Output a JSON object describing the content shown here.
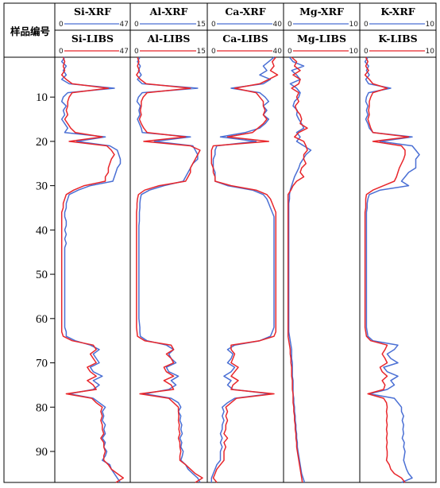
{
  "chart_data": {
    "type": "line",
    "orientation": "vertical-depth-log",
    "y_axis_title": "样品编号",
    "y_range": [
      1,
      97
    ],
    "y_ticks": [
      10,
      20,
      30,
      40,
      50,
      60,
      70,
      80,
      90
    ],
    "colors": {
      "xrf": "#4a6fd4",
      "libs": "#e8262b"
    },
    "depth": [
      1,
      2,
      3,
      4,
      5,
      6,
      7,
      8,
      9,
      10,
      11,
      12,
      13,
      14,
      15,
      16,
      17,
      18,
      19,
      20,
      21,
      22,
      23,
      24,
      25,
      26,
      27,
      28,
      29,
      30,
      31,
      32,
      33,
      34,
      35,
      36,
      37,
      38,
      39,
      40,
      41,
      42,
      43,
      44,
      45,
      46,
      47,
      48,
      49,
      50,
      51,
      52,
      53,
      54,
      55,
      56,
      57,
      58,
      59,
      60,
      61,
      62,
      63,
      64,
      65,
      66,
      67,
      68,
      69,
      70,
      71,
      72,
      73,
      74,
      75,
      76,
      77,
      78,
      79,
      80,
      81,
      82,
      83,
      84,
      85,
      86,
      87,
      88,
      89,
      90,
      91,
      92,
      93,
      94,
      95,
      96,
      97
    ],
    "tracks": [
      {
        "element": "Si",
        "xrf_label": "Si-XRF",
        "libs_label": "Si-LIBS",
        "range": [
          0,
          47
        ],
        "range_labels": [
          "0",
          "47"
        ],
        "xrf": [
          5,
          3,
          6,
          4,
          6,
          3,
          8,
          38,
          7,
          4,
          3,
          6,
          4,
          5,
          3,
          5,
          7,
          5,
          32,
          13,
          35,
          40,
          41,
          42,
          42,
          40,
          39,
          38,
          37,
          22,
          14,
          8,
          7,
          6,
          6,
          5,
          5,
          6,
          6,
          5,
          6,
          5,
          6,
          5,
          5,
          5,
          5,
          5,
          5,
          5,
          5,
          5,
          5,
          5,
          5,
          5,
          5,
          5,
          5,
          5,
          5,
          5,
          6,
          6,
          12,
          22,
          28,
          24,
          26,
          28,
          22,
          24,
          30,
          24,
          28,
          24,
          8,
          24,
          28,
          32,
          30,
          31,
          30,
          32,
          31,
          32,
          30,
          32,
          31,
          33,
          32,
          30,
          35,
          36,
          38,
          40,
          42
        ],
        "libs": [
          4,
          5,
          4,
          5,
          3,
          6,
          10,
          34,
          10,
          8,
          7,
          7,
          6,
          7,
          5,
          7,
          9,
          12,
          30,
          8,
          33,
          36,
          38,
          36,
          35,
          34,
          34,
          32,
          32,
          18,
          11,
          6,
          5,
          4,
          4,
          3,
          3,
          3,
          3,
          3,
          3,
          3,
          3,
          3,
          3,
          3,
          3,
          3,
          3,
          3,
          3,
          3,
          3,
          3,
          3,
          3,
          3,
          3,
          3,
          3,
          3,
          3,
          3,
          4,
          10,
          24,
          26,
          22,
          24,
          26,
          20,
          22,
          26,
          20,
          24,
          26,
          6,
          23,
          26,
          30,
          29,
          30,
          29,
          30,
          30,
          31,
          29,
          31,
          31,
          32,
          31,
          31,
          34,
          36,
          40,
          44,
          39
        ]
      },
      {
        "element": "Al",
        "xrf_label": "Al-XRF",
        "libs_label": "Al-LIBS",
        "range": [
          0,
          15
        ],
        "range_labels": [
          "0",
          "15"
        ],
        "xrf": [
          1.5,
          1.0,
          1.6,
          1.2,
          1.8,
          1.0,
          2.0,
          13.5,
          2.0,
          1.2,
          0.9,
          1.6,
          1.3,
          1.5,
          1.0,
          1.4,
          1.8,
          2.0,
          12.0,
          4.5,
          12.5,
          13.0,
          13.5,
          13.5,
          12.5,
          12.0,
          11.5,
          11.0,
          10.5,
          6.5,
          3.5,
          1.8,
          1.6,
          1.5,
          1.5,
          1.4,
          1.4,
          1.4,
          1.3,
          1.3,
          1.3,
          1.3,
          1.3,
          1.3,
          1.3,
          1.3,
          1.3,
          1.3,
          1.3,
          1.3,
          1.3,
          1.3,
          1.3,
          1.3,
          1.3,
          1.3,
          1.3,
          1.3,
          1.3,
          1.3,
          1.4,
          1.5,
          1.5,
          1.6,
          3.0,
          7.0,
          8.5,
          7.5,
          8.0,
          9.0,
          7.0,
          7.5,
          9.5,
          8.0,
          9.0,
          7.5,
          2.5,
          8.0,
          9.5,
          10.0,
          9.5,
          10.0,
          9.8,
          10.2,
          10.0,
          10.3,
          9.8,
          10.2,
          10.0,
          10.5,
          10.3,
          10.0,
          11.0,
          11.5,
          12.5,
          13.5,
          14.0
        ],
        "libs": [
          1.0,
          1.3,
          1.0,
          1.4,
          0.8,
          1.6,
          2.8,
          12.0,
          3.0,
          2.2,
          1.8,
          1.8,
          1.6,
          1.8,
          1.4,
          1.8,
          2.3,
          3.0,
          11.0,
          2.3,
          12.0,
          14.0,
          13.5,
          13.0,
          12.5,
          12.0,
          12.0,
          11.5,
          11.0,
          5.5,
          2.5,
          1.2,
          1.0,
          0.9,
          0.9,
          0.8,
          0.8,
          0.8,
          0.8,
          0.8,
          0.8,
          0.8,
          0.8,
          0.8,
          0.8,
          0.8,
          0.8,
          0.8,
          0.8,
          0.8,
          0.8,
          0.8,
          0.8,
          0.8,
          0.8,
          0.8,
          0.8,
          0.8,
          0.8,
          0.8,
          0.8,
          0.8,
          0.9,
          1.0,
          2.5,
          8.0,
          8.5,
          7.0,
          8.0,
          8.5,
          6.5,
          7.0,
          8.5,
          6.5,
          8.0,
          8.5,
          1.5,
          7.5,
          8.5,
          9.5,
          9.5,
          9.6,
          9.5,
          9.7,
          9.6,
          9.8,
          9.5,
          9.8,
          9.8,
          10.0,
          9.8,
          9.8,
          11.0,
          12.0,
          13.0,
          14.5,
          13.0
        ]
      },
      {
        "element": "Ca",
        "xrf_label": "Ca-XRF",
        "libs_label": "Ca-LIBS",
        "range": [
          0,
          40
        ],
        "range_labels": [
          "0",
          "40"
        ],
        "xrf": [
          36,
          33,
          30,
          32,
          28,
          34,
          30,
          12,
          28,
          31,
          33,
          30,
          32,
          30,
          33,
          31,
          28,
          20,
          6,
          26,
          4,
          3,
          3,
          2,
          2,
          2,
          3,
          3,
          3,
          10,
          24,
          30,
          32,
          33,
          34,
          35,
          36,
          36,
          36,
          36,
          36,
          36,
          36,
          36,
          36,
          36,
          36,
          36,
          36,
          36,
          36,
          36,
          36,
          36,
          36,
          36,
          36,
          36,
          36,
          36,
          36,
          36,
          35,
          34,
          28,
          14,
          10,
          13,
          12,
          10,
          14,
          12,
          8,
          12,
          10,
          13,
          34,
          14,
          10,
          7,
          8,
          7,
          8,
          7,
          7,
          6,
          7,
          6,
          7,
          6,
          6,
          6,
          4,
          3,
          2,
          1,
          1
        ],
        "libs": [
          37,
          35,
          36,
          34,
          38,
          33,
          28,
          14,
          26,
          28,
          30,
          30,
          31,
          30,
          32,
          30,
          27,
          24,
          10,
          33,
          2,
          1,
          1,
          1,
          1,
          2,
          2,
          3,
          3,
          12,
          26,
          32,
          34,
          35,
          36,
          37,
          37,
          37,
          37,
          37,
          37,
          37,
          37,
          37,
          37,
          37,
          37,
          37,
          37,
          37,
          37,
          37,
          37,
          37,
          37,
          37,
          37,
          37,
          37,
          37,
          37,
          37,
          37,
          36,
          28,
          12,
          12,
          14,
          13,
          12,
          16,
          14,
          12,
          16,
          13,
          12,
          36,
          15,
          12,
          9,
          10,
          9,
          10,
          9,
          9,
          8,
          10,
          8,
          9,
          8,
          8,
          8,
          6,
          4,
          3,
          2,
          4
        ]
      },
      {
        "element": "Mg",
        "xrf_label": "Mg-XRF",
        "libs_label": "Mg-LIBS",
        "range": [
          0,
          10
        ],
        "range_labels": [
          "0",
          "10"
        ],
        "xrf": [
          0.5,
          1.0,
          2.5,
          0.8,
          1.5,
          2.0,
          0.6,
          1.5,
          2.0,
          1.8,
          1.2,
          1.0,
          1.6,
          1.5,
          1.8,
          2.2,
          2.5,
          1.5,
          2.0,
          1.5,
          2.5,
          3.5,
          2.8,
          2.4,
          2.0,
          1.8,
          1.5,
          1.2,
          1.0,
          0.8,
          0.6,
          0.5,
          0.5,
          0.4,
          0.4,
          0.4,
          0.4,
          0.4,
          0.4,
          0.4,
          0.4,
          0.4,
          0.4,
          0.4,
          0.4,
          0.4,
          0.4,
          0.4,
          0.4,
          0.4,
          0.4,
          0.4,
          0.4,
          0.4,
          0.4,
          0.4,
          0.4,
          0.4,
          0.4,
          0.4,
          0.4,
          0.4,
          0.4,
          0.5,
          0.6,
          0.7,
          0.8,
          0.8,
          0.8,
          0.9,
          0.9,
          0.9,
          0.9,
          1.0,
          1.0,
          1.0,
          1.0,
          1.1,
          1.1,
          1.2,
          1.2,
          1.3,
          1.3,
          1.4,
          1.4,
          1.5,
          1.5,
          1.6,
          1.6,
          1.7,
          1.8,
          1.9,
          2.0,
          2.1,
          2.2,
          2.4,
          2.6
        ],
        "libs": [
          0.8,
          1.5,
          1.2,
          2.0,
          1.0,
          2.0,
          1.8,
          0.8,
          1.8,
          1.5,
          1.8,
          1.3,
          1.5,
          2.0,
          2.2,
          2.0,
          3.0,
          1.8,
          1.2,
          2.5,
          2.8,
          3.0,
          2.5,
          2.5,
          2.8,
          2.2,
          2.0,
          2.5,
          1.5,
          1.0,
          0.7,
          0.3,
          0.3,
          0.3,
          0.3,
          0.3,
          0.3,
          0.3,
          0.3,
          0.3,
          0.3,
          0.3,
          0.3,
          0.3,
          0.3,
          0.3,
          0.3,
          0.3,
          0.3,
          0.3,
          0.3,
          0.3,
          0.3,
          0.3,
          0.3,
          0.3,
          0.3,
          0.3,
          0.3,
          0.3,
          0.3,
          0.3,
          0.3,
          0.3,
          0.4,
          0.5,
          0.6,
          0.6,
          0.7,
          0.7,
          0.8,
          0.8,
          0.8,
          0.9,
          0.9,
          0.9,
          1.0,
          1.0,
          1.0,
          1.1,
          1.1,
          1.2,
          1.2,
          1.3,
          1.3,
          1.4,
          1.4,
          1.5,
          1.5,
          1.6,
          1.7,
          1.8,
          1.9,
          2.0,
          2.1,
          2.2,
          2.3
        ]
      },
      {
        "element": "K",
        "xrf_label": "K-XRF",
        "libs_label": "K-LIBS",
        "range": [
          0,
          10
        ],
        "range_labels": [
          "0",
          "10"
        ],
        "xrf": [
          0.8,
          0.4,
          0.9,
          0.6,
          1.0,
          0.5,
          0.9,
          4.0,
          0.9,
          0.6,
          0.5,
          0.8,
          0.6,
          0.8,
          0.5,
          0.8,
          1.0,
          1.5,
          7.0,
          2.5,
          7.0,
          7.5,
          8.0,
          7.5,
          7.5,
          7.5,
          6.5,
          6.0,
          5.5,
          6.5,
          2.5,
          1.0,
          0.8,
          0.7,
          0.7,
          0.6,
          0.6,
          0.6,
          0.6,
          0.6,
          0.6,
          0.6,
          0.6,
          0.6,
          0.6,
          0.6,
          0.6,
          0.6,
          0.6,
          0.6,
          0.6,
          0.6,
          0.6,
          0.6,
          0.6,
          0.6,
          0.6,
          0.6,
          0.6,
          0.6,
          0.6,
          0.6,
          0.7,
          0.8,
          1.5,
          5.0,
          4.5,
          3.5,
          4.0,
          5.0,
          3.0,
          3.5,
          5.0,
          4.0,
          4.5,
          3.5,
          1.0,
          4.5,
          5.0,
          5.5,
          5.5,
          5.8,
          5.6,
          5.8,
          5.7,
          5.8,
          5.6,
          5.9,
          5.8,
          6.0,
          5.9,
          5.8,
          6.0,
          6.2,
          6.5,
          7.0,
          5.5
        ],
        "libs": [
          0.5,
          0.8,
          0.5,
          0.9,
          0.4,
          1.0,
          1.5,
          3.5,
          1.5,
          1.2,
          1.0,
          1.0,
          0.9,
          1.0,
          0.8,
          1.0,
          1.2,
          1.5,
          6.5,
          1.5,
          5.5,
          6.0,
          6.0,
          5.8,
          5.5,
          5.2,
          5.0,
          4.8,
          4.5,
          3.0,
          1.5,
          0.6,
          0.5,
          0.5,
          0.5,
          0.4,
          0.4,
          0.4,
          0.4,
          0.4,
          0.4,
          0.4,
          0.4,
          0.4,
          0.4,
          0.4,
          0.4,
          0.4,
          0.4,
          0.4,
          0.4,
          0.4,
          0.4,
          0.4,
          0.4,
          0.4,
          0.4,
          0.4,
          0.4,
          0.4,
          0.4,
          0.4,
          0.5,
          0.6,
          1.2,
          3.5,
          3.2,
          2.8,
          3.2,
          3.5,
          2.5,
          2.8,
          3.5,
          2.8,
          3.2,
          3.0,
          0.8,
          3.0,
          3.4,
          3.5,
          3.4,
          3.5,
          3.4,
          3.5,
          3.4,
          3.5,
          3.4,
          3.5,
          3.4,
          3.5,
          3.5,
          3.4,
          3.8,
          4.0,
          4.5,
          5.5,
          6.0
        ]
      }
    ]
  }
}
